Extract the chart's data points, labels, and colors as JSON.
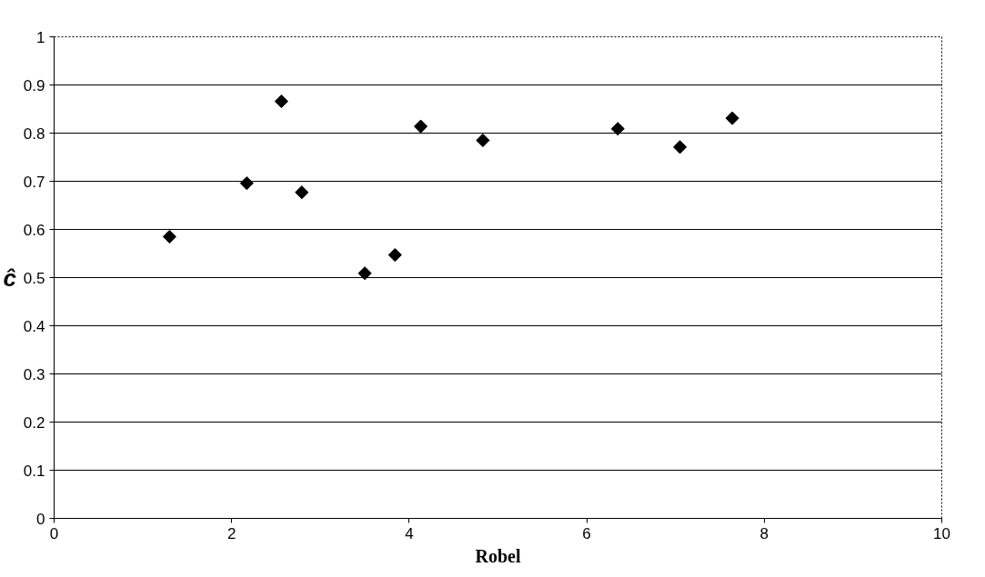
{
  "chart_data": {
    "type": "scatter",
    "xlabel": "Robel",
    "ylabel": "ĉ",
    "x": [
      1.3,
      2.17,
      2.56,
      2.79,
      3.5,
      3.84,
      4.13,
      4.83,
      6.35,
      7.05,
      7.64
    ],
    "values": [
      0.585,
      0.696,
      0.866,
      0.677,
      0.509,
      0.547,
      0.814,
      0.785,
      0.809,
      0.771,
      0.831
    ],
    "color": "#000000",
    "marker": "diamond",
    "xlim": [
      0,
      10
    ],
    "xticks": [
      0,
      2,
      4,
      6,
      8,
      10
    ],
    "ylim": [
      0,
      1
    ],
    "yticks": [
      0,
      0.1,
      0.2,
      0.3,
      0.4,
      0.5,
      0.6,
      0.7,
      0.8,
      0.9,
      1
    ],
    "grid": "y"
  }
}
